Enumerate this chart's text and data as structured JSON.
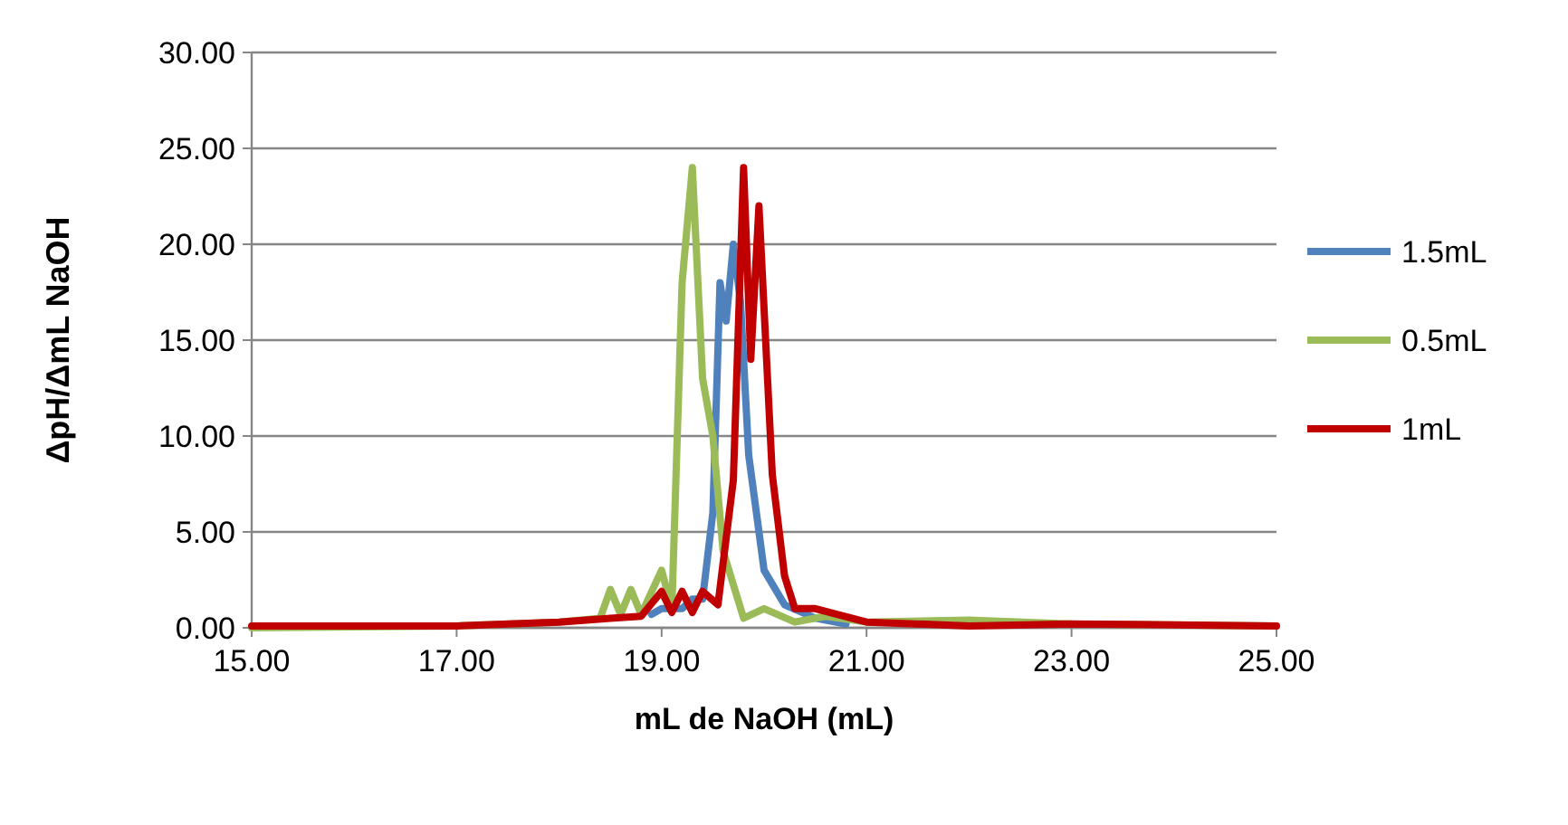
{
  "chart_data": {
    "type": "line",
    "xlabel": "mL de NaOH (mL)",
    "ylabel": "ΔpH/ΔmL NaOH",
    "xlim": [
      15,
      25
    ],
    "xticks": [
      {
        "value": 15,
        "label": "15.00"
      },
      {
        "value": 17,
        "label": "17.00"
      },
      {
        "value": 19,
        "label": "19.00"
      },
      {
        "value": 21,
        "label": "21.00"
      },
      {
        "value": 23,
        "label": "23.00"
      },
      {
        "value": 25,
        "label": "25.00"
      }
    ],
    "ylim": [
      0,
      30
    ],
    "yticks": [
      {
        "value": 0,
        "label": "0.00"
      },
      {
        "value": 5,
        "label": "5.00"
      },
      {
        "value": 10,
        "label": "10.00"
      },
      {
        "value": 15,
        "label": "15.00"
      },
      {
        "value": 20,
        "label": "20.00"
      },
      {
        "value": 25,
        "label": "25.00"
      },
      {
        "value": 30,
        "label": "30.00"
      }
    ],
    "grid": "y",
    "legend": "right",
    "marker": "none",
    "line_style": "solid",
    "series": [
      {
        "name": "1.5mL",
        "color": "#4f81bd",
        "x": [
          18.9,
          19,
          19.2,
          19.3,
          19.4,
          19.5,
          19.57,
          19.63,
          19.7,
          19.77,
          19.85,
          20,
          20.2,
          20.5,
          20.8
        ],
        "values": [
          0.7,
          1,
          1,
          1.5,
          1.5,
          6,
          18,
          16,
          20,
          17,
          9,
          3,
          1.2,
          0.5,
          0.2
        ]
      },
      {
        "name": "0.5mL",
        "color": "#9bbb59",
        "x": [
          15,
          17,
          18,
          18.4,
          18.5,
          18.6,
          18.7,
          18.8,
          19,
          19.1,
          19.2,
          19.3,
          19.4,
          19.5,
          19.6,
          19.8,
          20,
          20.3,
          20.6,
          21,
          22,
          23,
          25
        ],
        "values": [
          0,
          0.1,
          0.3,
          0.5,
          2,
          0.7,
          2,
          0.7,
          3,
          1,
          18,
          24,
          13,
          10,
          4,
          0.5,
          1,
          0.3,
          0.6,
          0.3,
          0.4,
          0.2,
          0.1
        ]
      },
      {
        "name": "1mL",
        "color": "#c00000",
        "x": [
          15,
          17,
          18,
          18.5,
          18.8,
          19,
          19.1,
          19.2,
          19.3,
          19.4,
          19.55,
          19.7,
          19.8,
          19.87,
          19.95,
          20.08,
          20.2,
          20.3,
          20.5,
          21,
          22,
          23,
          25
        ],
        "values": [
          0.1,
          0.1,
          0.3,
          0.5,
          0.6,
          1.9,
          0.8,
          1.9,
          0.8,
          1.9,
          1.2,
          7.7,
          24,
          14,
          22,
          8,
          2.7,
          1,
          1,
          0.3,
          0.1,
          0.2,
          0.1
        ]
      }
    ]
  }
}
